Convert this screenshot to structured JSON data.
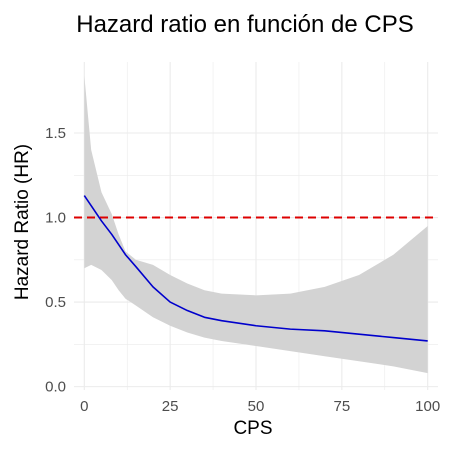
{
  "chart_data": {
    "type": "line",
    "title": "Hazard ratio en función de CPS",
    "xlabel": "CPS",
    "ylabel": "Hazard Ratio (HR)",
    "xlim": [
      -3,
      103
    ],
    "ylim": [
      -0.02,
      1.92
    ],
    "x_ticks": [
      0,
      25,
      50,
      75,
      100
    ],
    "x_tick_labels": [
      "0",
      "25",
      "50",
      "75",
      "100"
    ],
    "y_ticks": [
      0.0,
      0.5,
      1.0,
      1.5
    ],
    "y_tick_labels": [
      "0.0",
      "0.5",
      "1.0",
      "1.5"
    ],
    "grid": true,
    "legend": "none",
    "reference_line": {
      "y": 1.0,
      "style": "dashed",
      "color": "#dd0000"
    },
    "colors": {
      "line": "#0000cc",
      "ribbon": "#d3d3d3",
      "reference": "#dd0000",
      "grid": "#ebebeb"
    },
    "series": [
      {
        "x": [
          0,
          2,
          5,
          8,
          10,
          12,
          15,
          20,
          25,
          30,
          35,
          40,
          50,
          60,
          70,
          80,
          90,
          100
        ],
        "hr": [
          1.13,
          1.07,
          0.98,
          0.9,
          0.84,
          0.78,
          0.71,
          0.59,
          0.5,
          0.45,
          0.41,
          0.39,
          0.36,
          0.34,
          0.33,
          0.31,
          0.29,
          0.27
        ],
        "lower": [
          0.7,
          0.72,
          0.69,
          0.63,
          0.57,
          0.52,
          0.48,
          0.41,
          0.36,
          0.32,
          0.29,
          0.27,
          0.24,
          0.21,
          0.18,
          0.15,
          0.12,
          0.08
        ],
        "upper": [
          1.84,
          1.4,
          1.15,
          1.02,
          0.9,
          0.8,
          0.75,
          0.72,
          0.66,
          0.61,
          0.57,
          0.55,
          0.54,
          0.55,
          0.59,
          0.66,
          0.78,
          0.95
        ]
      }
    ]
  }
}
